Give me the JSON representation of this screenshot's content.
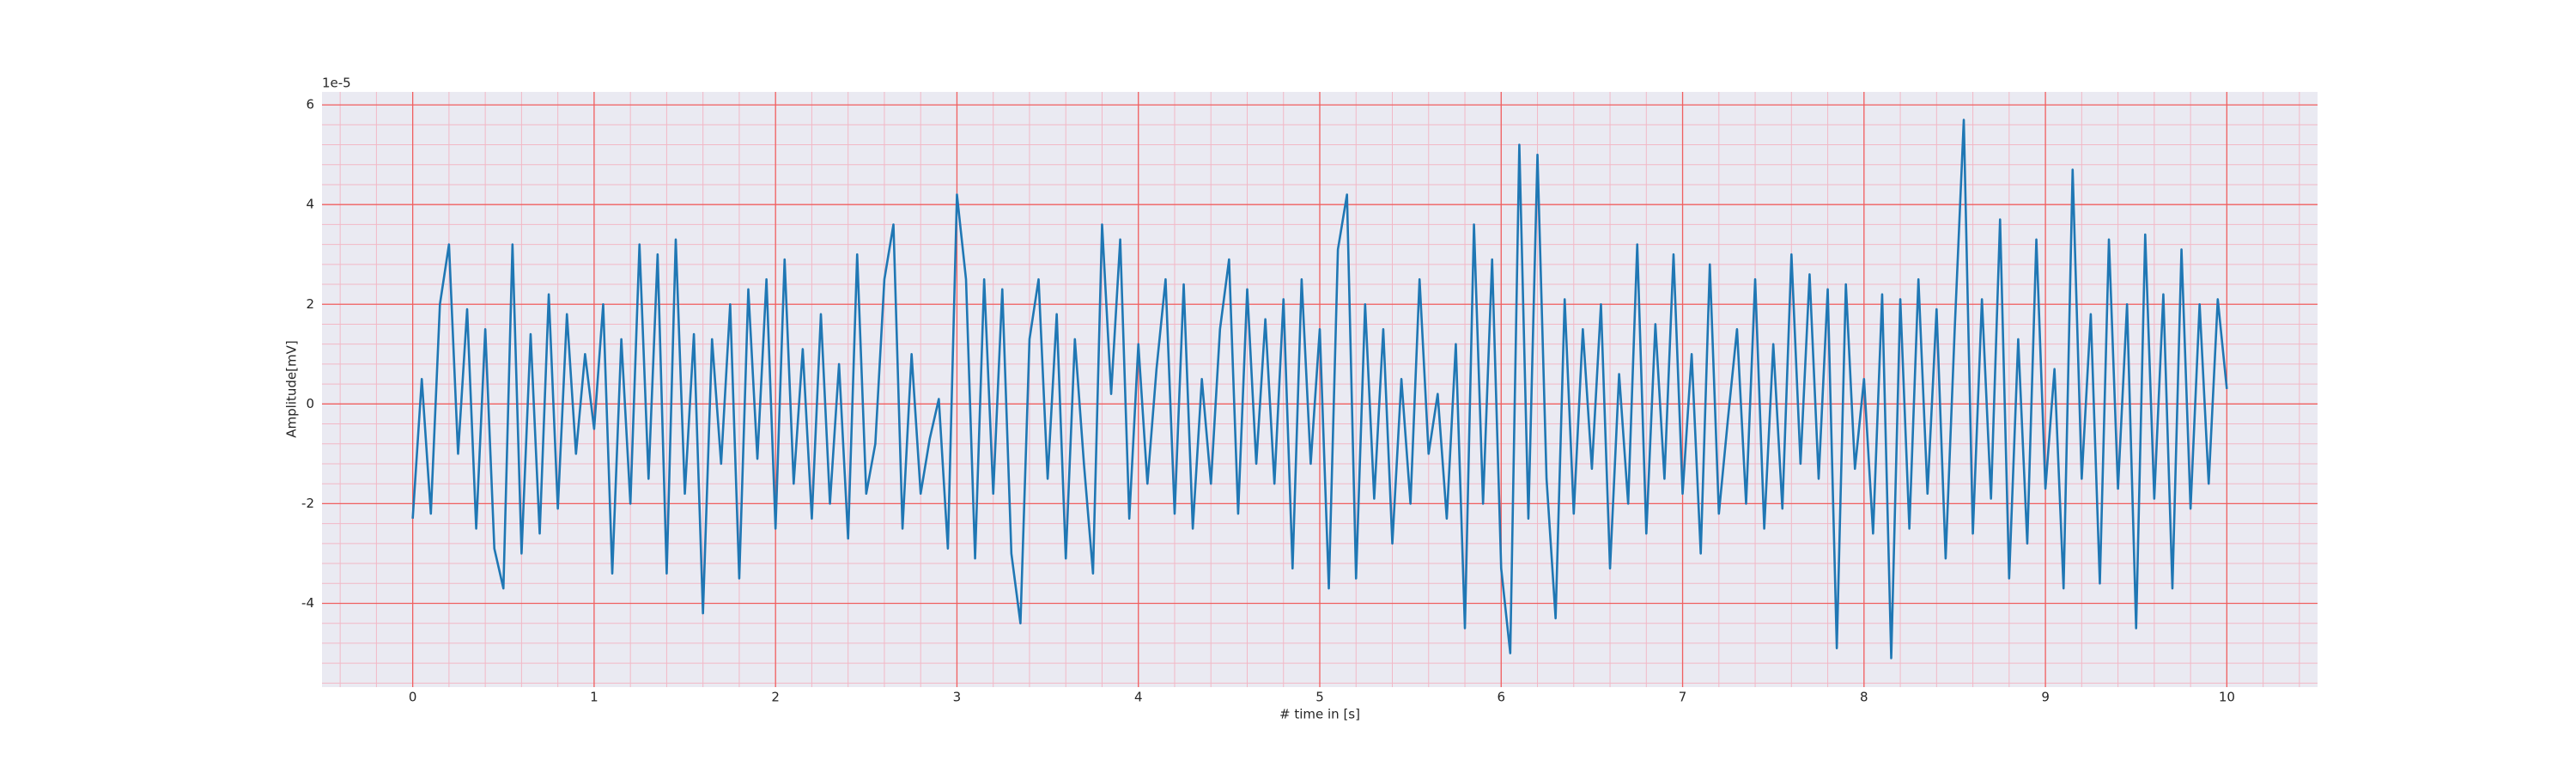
{
  "chart_data": {
    "type": "line",
    "offset_text": "1e-5",
    "xlabel": "# time in [s]",
    "ylabel": "Amplitude[mV]",
    "color": "#1f77b4",
    "grid": true,
    "minor_grid": true,
    "xlim": [
      -0.5,
      10.5
    ],
    "xticks": [
      0,
      1,
      2,
      3,
      4,
      5,
      6,
      7,
      8,
      9,
      10
    ],
    "ylim": [
      -5.68,
      6.26
    ],
    "yticks": [
      -4,
      -2,
      0,
      2,
      4,
      6
    ],
    "x": [
      0,
      0.05,
      0.1,
      0.15,
      0.2,
      0.25,
      0.3,
      0.35,
      0.4,
      0.45,
      0.5,
      0.55,
      0.6,
      0.65,
      0.7,
      0.75,
      0.8,
      0.85,
      0.9,
      0.95,
      1,
      1.05,
      1.1,
      1.15,
      1.2,
      1.25,
      1.3,
      1.35,
      1.4,
      1.45,
      1.5,
      1.55,
      1.6,
      1.65,
      1.7,
      1.75,
      1.8,
      1.85,
      1.9,
      1.95,
      2,
      2.05,
      2.1,
      2.15,
      2.2,
      2.25,
      2.3,
      2.35,
      2.4,
      2.45,
      2.5,
      2.55,
      2.6,
      2.65,
      2.7,
      2.75,
      2.8,
      2.85,
      2.9,
      2.95,
      3,
      3.05,
      3.1,
      3.15,
      3.2,
      3.25,
      3.3,
      3.35,
      3.4,
      3.45,
      3.5,
      3.55,
      3.6,
      3.65,
      3.7,
      3.75,
      3.8,
      3.85,
      3.9,
      3.95,
      4,
      4.05,
      4.1,
      4.15,
      4.2,
      4.25,
      4.3,
      4.35,
      4.4,
      4.45,
      4.5,
      4.55,
      4.6,
      4.65,
      4.7,
      4.75,
      4.8,
      4.85,
      4.9,
      4.95,
      5,
      5.05,
      5.1,
      5.15,
      5.2,
      5.25,
      5.3,
      5.35,
      5.4,
      5.45,
      5.5,
      5.55,
      5.6,
      5.65,
      5.7,
      5.75,
      5.8,
      5.85,
      5.9,
      5.95,
      6,
      6.05,
      6.1,
      6.15,
      6.2,
      6.25,
      6.3,
      6.35,
      6.4,
      6.45,
      6.5,
      6.55,
      6.6,
      6.65,
      6.7,
      6.75,
      6.8,
      6.85,
      6.9,
      6.95,
      7,
      7.05,
      7.1,
      7.15,
      7.2,
      7.25,
      7.3,
      7.35,
      7.4,
      7.45,
      7.5,
      7.55,
      7.6,
      7.65,
      7.7,
      7.75,
      7.8,
      7.85,
      7.9,
      7.95,
      8,
      8.05,
      8.1,
      8.15,
      8.2,
      8.25,
      8.3,
      8.35,
      8.4,
      8.45,
      8.5,
      8.55,
      8.6,
      8.65,
      8.7,
      8.75,
      8.8,
      8.85,
      8.9,
      8.95,
      9,
      9.05,
      9.1,
      9.15,
      9.2,
      9.25,
      9.3,
      9.35,
      9.4,
      9.45,
      9.5,
      9.55,
      9.6,
      9.65,
      9.7,
      9.75,
      9.8,
      9.85,
      9.9,
      9.95,
      10
    ],
    "values": [
      -2.3,
      0.5,
      -2.2,
      2.0,
      3.2,
      -1.0,
      1.9,
      -2.5,
      1.5,
      -2.9,
      -3.7,
      3.2,
      -3.0,
      1.4,
      -2.6,
      2.2,
      -2.1,
      1.8,
      -1.0,
      1.0,
      -0.5,
      2.0,
      -3.4,
      1.3,
      -2.0,
      3.2,
      -1.5,
      3.0,
      -3.4,
      3.3,
      -1.8,
      1.4,
      -4.2,
      1.3,
      -1.2,
      2.0,
      -3.5,
      2.3,
      -1.1,
      2.5,
      -2.5,
      2.9,
      -1.6,
      1.1,
      -2.3,
      1.8,
      -2.0,
      0.8,
      -2.7,
      3.0,
      -1.8,
      -0.8,
      2.5,
      3.6,
      -2.5,
      1.0,
      -1.8,
      -0.7,
      0.1,
      -2.9,
      4.2,
      2.5,
      -3.1,
      2.5,
      -1.8,
      2.3,
      -3.0,
      -4.4,
      1.3,
      2.5,
      -1.5,
      1.8,
      -3.1,
      1.3,
      -1.2,
      -3.4,
      3.6,
      0.2,
      3.3,
      -2.3,
      1.2,
      -1.6,
      0.7,
      2.5,
      -2.2,
      2.4,
      -2.5,
      0.5,
      -1.6,
      1.5,
      2.9,
      -2.2,
      2.3,
      -1.2,
      1.7,
      -1.6,
      2.1,
      -3.3,
      2.5,
      -1.2,
      1.5,
      -3.7,
      3.1,
      4.2,
      -3.5,
      2.0,
      -1.9,
      1.5,
      -2.8,
      0.5,
      -2.0,
      2.5,
      -1.0,
      0.2,
      -2.3,
      1.2,
      -4.5,
      3.6,
      -2.0,
      2.9,
      -3.3,
      -5.0,
      5.2,
      -2.3,
      5.0,
      -1.5,
      -4.3,
      2.1,
      -2.2,
      1.5,
      -1.3,
      2.0,
      -3.3,
      0.6,
      -2.0,
      3.2,
      -2.6,
      1.6,
      -1.5,
      3.0,
      -1.8,
      1.0,
      -3.0,
      2.8,
      -2.2,
      -0.3,
      1.5,
      -2.0,
      2.5,
      -2.5,
      1.2,
      -2.1,
      3.0,
      -1.2,
      2.6,
      -1.5,
      2.3,
      -4.9,
      2.4,
      -1.3,
      0.5,
      -2.6,
      2.2,
      -5.1,
      2.1,
      -2.5,
      2.5,
      -1.8,
      1.9,
      -3.1,
      1.5,
      5.7,
      -2.6,
      2.1,
      -1.9,
      3.7,
      -3.5,
      1.3,
      -2.8,
      3.3,
      -1.7,
      0.7,
      -3.7,
      4.7,
      -1.5,
      1.8,
      -3.6,
      3.3,
      -1.7,
      2.0,
      -4.5,
      3.4,
      -1.9,
      2.2,
      -3.7,
      3.1,
      -2.1,
      2.0,
      -1.6,
      2.1,
      0.3
    ]
  }
}
